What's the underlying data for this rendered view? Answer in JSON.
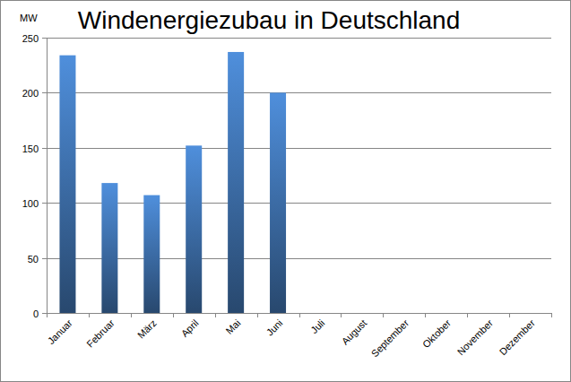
{
  "chart_data": {
    "type": "bar",
    "title": "Windenergiezubau in Deutschland",
    "ylabel": "MW",
    "categories": [
      "Januar",
      "Februar",
      "März",
      "April",
      "Mai",
      "Juni",
      "Juli",
      "August",
      "September",
      "Oktober",
      "November",
      "Dezember"
    ],
    "values": [
      234,
      118,
      107,
      152,
      237,
      200,
      null,
      null,
      null,
      null,
      null,
      null
    ],
    "color": "#4f8fdc",
    "ylim": [
      0,
      250
    ],
    "yticks": [
      0,
      50,
      100,
      150,
      200,
      250
    ],
    "grid": true
  }
}
